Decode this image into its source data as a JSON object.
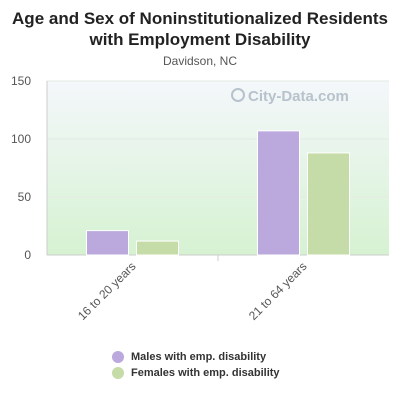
{
  "colors": {
    "male": "#bba8dc",
    "female": "#c5dba8",
    "background_top": "#f4f7fb",
    "background_bottom": "#d6f2d2"
  },
  "watermark": {
    "text": "City-Data.com"
  },
  "chart_data": {
    "type": "bar",
    "title": "Age and Sex of Noninstitutionalized Residents with Employment Disability",
    "subtitle": "Davidson, NC",
    "categories": [
      "16 to 20 years",
      "21 to 64 years"
    ],
    "series": [
      {
        "name": "Males with emp. disability",
        "values": [
          21,
          107
        ]
      },
      {
        "name": "Females with emp. disability",
        "values": [
          12,
          88
        ]
      }
    ],
    "ylim": [
      0,
      150
    ],
    "yticks": [
      0,
      50,
      100,
      150
    ],
    "grid": true,
    "legend": "bottom"
  }
}
